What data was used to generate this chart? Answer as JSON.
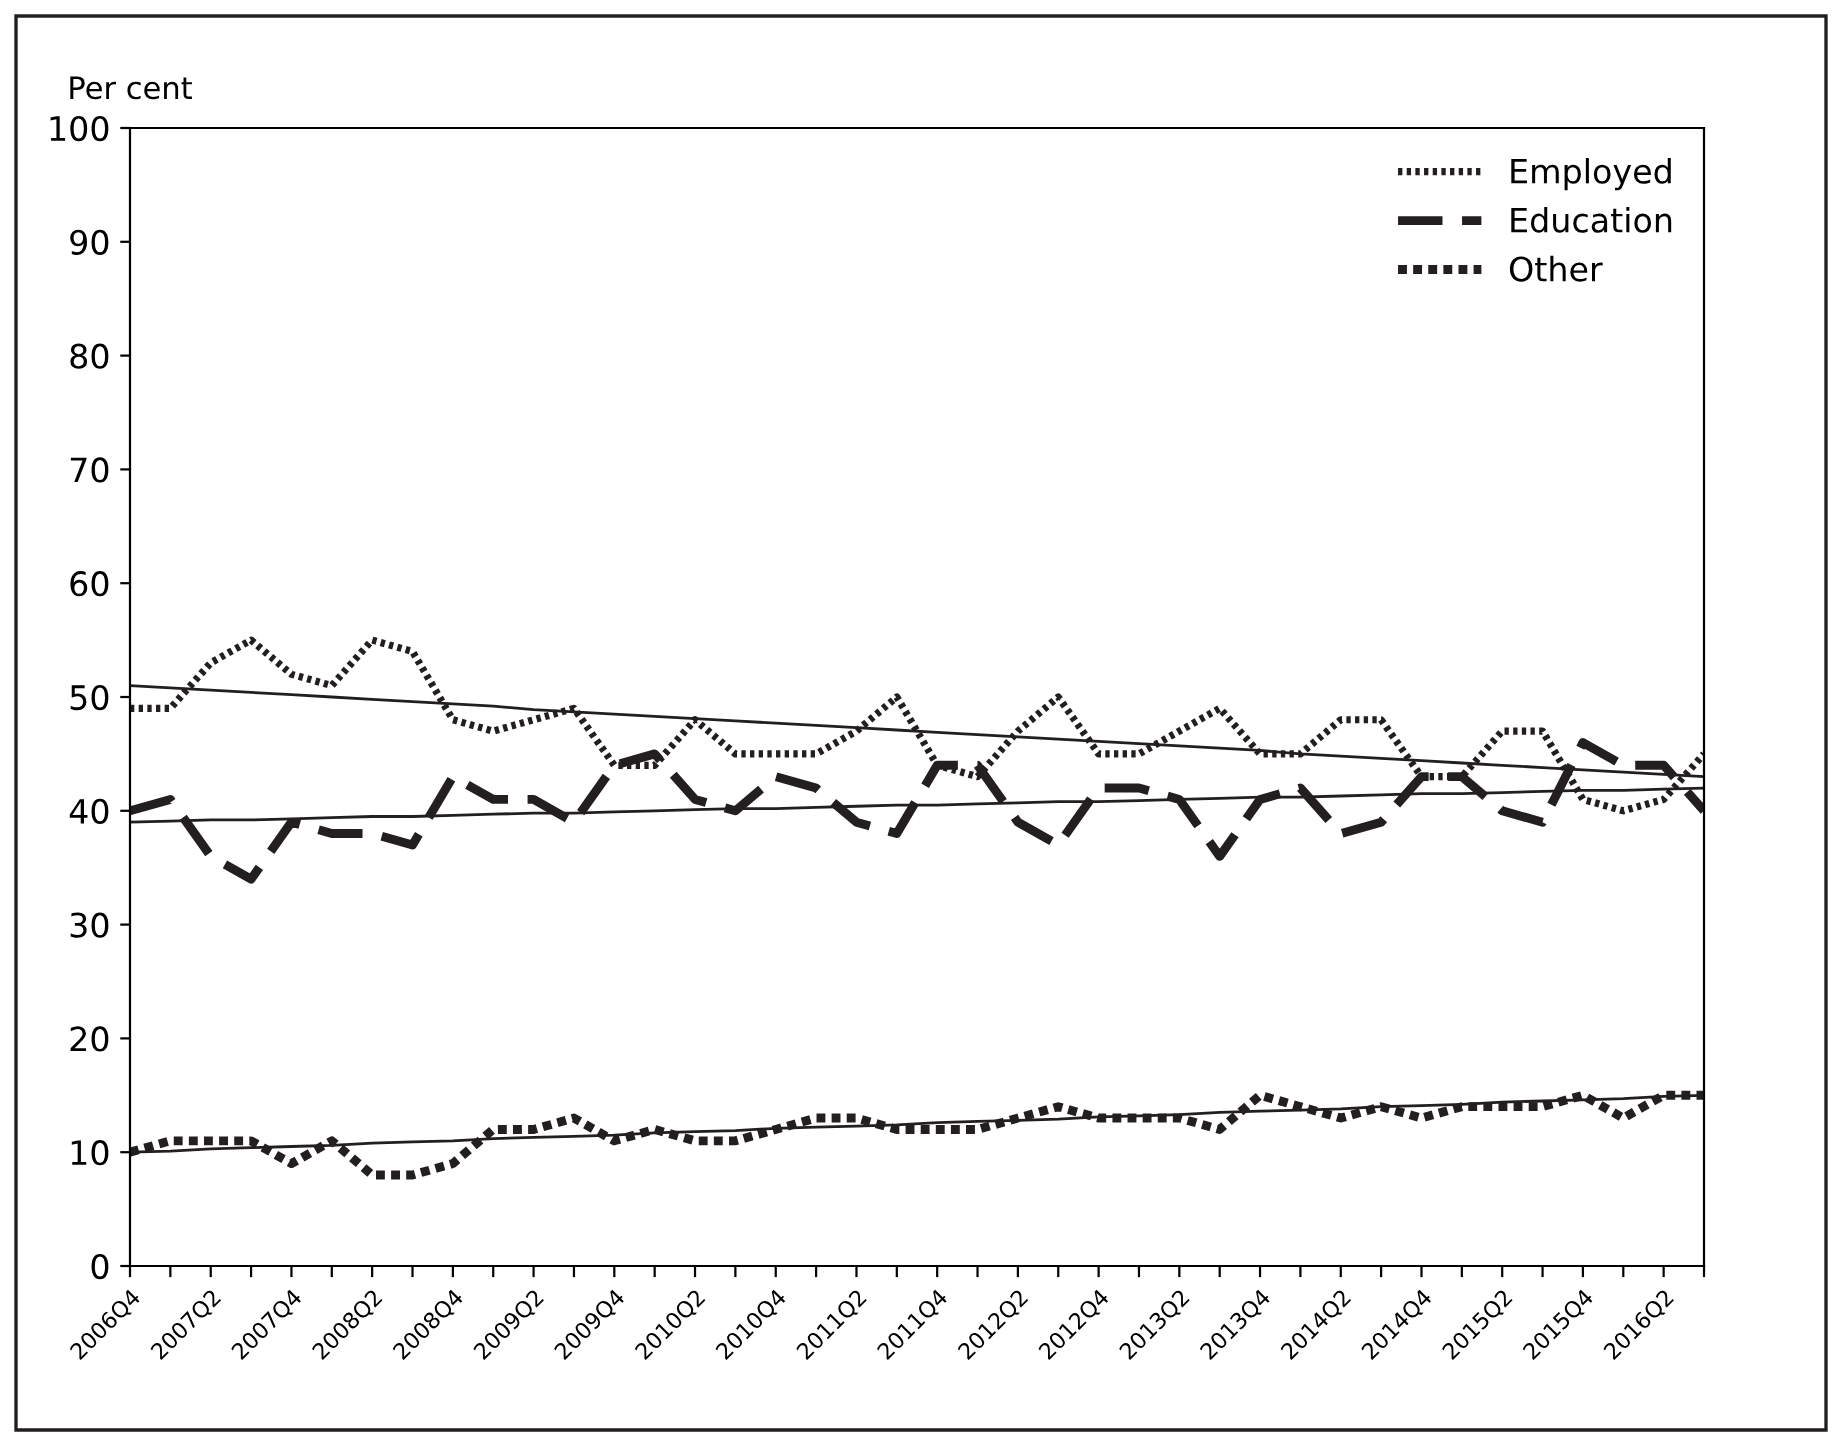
{
  "chart_data": {
    "type": "line",
    "ylabel": "Per cent",
    "categories": [
      "2006Q4",
      null,
      "2007Q2",
      null,
      "2007Q4",
      null,
      "2008Q2",
      null,
      "2008Q4",
      null,
      "2009Q2",
      null,
      "2009Q4",
      null,
      "2010Q2",
      null,
      "2010Q4",
      null,
      "2011Q2",
      null,
      "2011Q4",
      null,
      "2012Q2",
      null,
      "2012Q4",
      null,
      "2013Q2",
      null,
      "2013Q4",
      null,
      "2014Q2",
      null,
      "2014Q4",
      null,
      "2015Q2",
      null,
      "2015Q4",
      null,
      "2016Q2",
      null
    ],
    "series": [
      {
        "name": "Employed",
        "color": "#231f20",
        "line_style": "dotted",
        "values": [
          49,
          49,
          53,
          55,
          52,
          51,
          55,
          54,
          48,
          47,
          48,
          49,
          44,
          44,
          48,
          45,
          45,
          45,
          47,
          50,
          44,
          43,
          47,
          50,
          45,
          45,
          47,
          49,
          45,
          45,
          48,
          48,
          43,
          43,
          47,
          47,
          41,
          40,
          41,
          45
        ]
      },
      {
        "name": "Education",
        "color": "#231f20",
        "line_style": "dashed",
        "values": [
          40,
          41,
          36,
          34,
          39,
          38,
          38,
          37,
          43,
          41,
          41,
          39,
          44,
          45,
          41,
          40,
          43,
          42,
          39,
          38,
          44,
          44,
          39,
          37,
          42,
          42,
          41,
          36,
          41,
          42,
          38,
          39,
          43,
          43,
          40,
          39,
          46,
          44,
          44,
          40
        ]
      },
      {
        "name": "Other",
        "color": "#231f20",
        "line_style": "dotted",
        "values": [
          10,
          11,
          11,
          11,
          9,
          11,
          8,
          8,
          9,
          12,
          12,
          13,
          11,
          12,
          11,
          11,
          12,
          13,
          13,
          12,
          12,
          12,
          13,
          14,
          13,
          13,
          13,
          12,
          15,
          14,
          13,
          14,
          13,
          14,
          14,
          14,
          15,
          13,
          15,
          15
        ]
      },
      {
        "color": "#231f20",
        "line_style": "solid",
        "values": [
          51.0,
          50.8,
          50.6,
          50.4,
          50.2,
          50.0,
          49.8,
          49.6,
          49.4,
          49.2,
          48.9,
          48.7,
          48.5,
          48.3,
          48.1,
          47.9,
          47.7,
          47.5,
          47.3,
          47.1,
          46.9,
          46.7,
          46.5,
          46.3,
          46.1,
          45.9,
          45.7,
          45.5,
          45.3,
          45.0,
          44.8,
          44.6,
          44.4,
          44.2,
          44.0,
          43.8,
          43.6,
          43.4,
          43.2,
          43.0
        ]
      },
      {
        "color": "#231f20",
        "line_style": "solid",
        "values": [
          39.0,
          39.1,
          39.2,
          39.2,
          39.3,
          39.4,
          39.5,
          39.5,
          39.6,
          39.7,
          39.8,
          39.8,
          39.9,
          40.0,
          40.1,
          40.2,
          40.2,
          40.3,
          40.4,
          40.5,
          40.5,
          40.6,
          40.7,
          40.8,
          40.8,
          40.9,
          41.0,
          41.1,
          41.2,
          41.2,
          41.3,
          41.4,
          41.5,
          41.5,
          41.6,
          41.7,
          41.8,
          41.8,
          41.9,
          42.0
        ]
      },
      {
        "color": "#231f20",
        "line_style": "solid",
        "values": [
          10.0,
          10.1,
          10.3,
          10.4,
          10.5,
          10.6,
          10.8,
          10.9,
          11.0,
          11.2,
          11.3,
          11.4,
          11.5,
          11.7,
          11.8,
          11.9,
          12.1,
          12.2,
          12.3,
          12.4,
          12.6,
          12.7,
          12.8,
          12.9,
          13.1,
          13.2,
          13.3,
          13.5,
          13.6,
          13.7,
          13.8,
          14.0,
          14.1,
          14.2,
          14.4,
          14.5,
          14.6,
          14.7,
          14.9,
          15.0
        ]
      }
    ],
    "ylim": [
      0,
      100
    ],
    "yticks": [
      0,
      10,
      20,
      30,
      40,
      50,
      60,
      70,
      80,
      90,
      100
    ],
    "grid": false,
    "legend": "top right"
  }
}
